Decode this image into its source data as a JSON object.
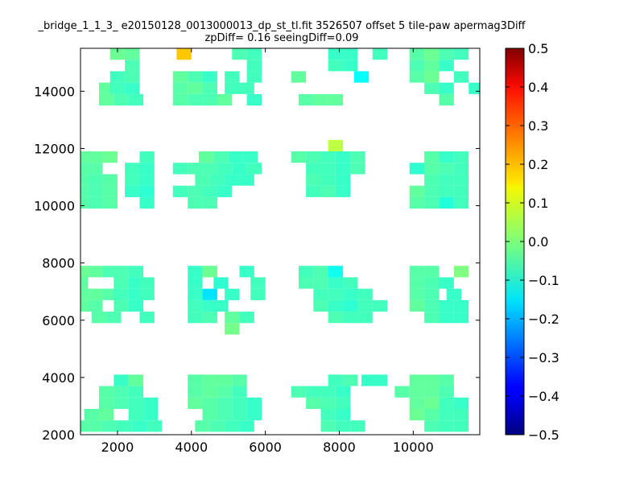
{
  "chart_data": {
    "type": "heatmap",
    "title": "_bridge_1_1_3_ e20150128_0013000013_dp_st_tl.fit 3526507 offset 5 tile-paw apermag3Diff",
    "subtitle": "zpDiff= 0.16 seeingDiff=0.09",
    "xlabel": "",
    "ylabel": "",
    "xlim": [
      1000,
      11800
    ],
    "ylim": [
      2000,
      15500
    ],
    "x_ticks": [
      2000,
      4000,
      6000,
      8000,
      10000
    ],
    "x_tick_labels": [
      "2000",
      "4000",
      "6000",
      "8000",
      "10000"
    ],
    "y_ticks": [
      2000,
      4000,
      6000,
      8000,
      10000,
      12000,
      14000
    ],
    "y_tick_labels": [
      "2000",
      "4000",
      "6000",
      "8000",
      "10000",
      "12000",
      "14000"
    ],
    "cell_width": 400,
    "cell_height": 400,
    "colormap": "jet",
    "colorbar": {
      "min": -0.5,
      "max": 0.5,
      "ticks": [
        0.5,
        0.4,
        0.3,
        0.2,
        0.1,
        0.0,
        -0.1,
        -0.2,
        -0.3,
        -0.4,
        -0.5
      ],
      "tick_labels": [
        "0.5",
        "0.4",
        "0.3",
        "0.2",
        "0.1",
        "0.0",
        "−0.1",
        "−0.2",
        "−0.3",
        "−0.4",
        "−0.5"
      ]
    },
    "cells": [
      [
        2000,
        15300,
        -0.02
      ],
      [
        2400,
        15300,
        -0.03
      ],
      [
        3800,
        15300,
        0.18
      ],
      [
        5300,
        15300,
        -0.05
      ],
      [
        5700,
        15300,
        -0.06
      ],
      [
        7900,
        15300,
        -0.07
      ],
      [
        8300,
        15300,
        -0.07
      ],
      [
        9100,
        15300,
        -0.06
      ],
      [
        10100,
        15300,
        -0.04
      ],
      [
        10500,
        15300,
        -0.02
      ],
      [
        10900,
        15300,
        -0.05
      ],
      [
        11300,
        15300,
        -0.06
      ],
      [
        2400,
        14900,
        -0.05
      ],
      [
        5700,
        14900,
        -0.06
      ],
      [
        7900,
        14900,
        -0.06
      ],
      [
        8300,
        14900,
        -0.07
      ],
      [
        10100,
        14900,
        -0.05
      ],
      [
        10500,
        14900,
        -0.03
      ],
      [
        10900,
        14900,
        -0.07
      ],
      [
        2000,
        14500,
        -0.06
      ],
      [
        2400,
        14500,
        -0.05
      ],
      [
        3700,
        14500,
        -0.03
      ],
      [
        4100,
        14500,
        -0.05
      ],
      [
        4500,
        14500,
        -0.07
      ],
      [
        5100,
        14500,
        -0.06
      ],
      [
        5700,
        14500,
        -0.06
      ],
      [
        6900,
        14500,
        -0.03
      ],
      [
        8600,
        14500,
        -0.12
      ],
      [
        10100,
        14500,
        -0.04
      ],
      [
        10500,
        14500,
        -0.02
      ],
      [
        11300,
        14500,
        -0.06
      ],
      [
        1700,
        14100,
        -0.03
      ],
      [
        2000,
        14100,
        -0.06
      ],
      [
        2400,
        14100,
        -0.07
      ],
      [
        3700,
        14100,
        -0.04
      ],
      [
        4100,
        14100,
        -0.03
      ],
      [
        4500,
        14100,
        -0.05
      ],
      [
        5100,
        14100,
        -0.06
      ],
      [
        5500,
        14100,
        -0.06
      ],
      [
        10500,
        14100,
        -0.05
      ],
      [
        10900,
        14100,
        -0.07
      ],
      [
        11700,
        14100,
        -0.07
      ],
      [
        1700,
        13700,
        -0.03
      ],
      [
        2100,
        13700,
        -0.05
      ],
      [
        2500,
        13700,
        -0.06
      ],
      [
        3700,
        13700,
        -0.04
      ],
      [
        4100,
        13700,
        -0.05
      ],
      [
        4500,
        13700,
        -0.05
      ],
      [
        4900,
        13700,
        -0.03
      ],
      [
        5700,
        13700,
        -0.07
      ],
      [
        7100,
        13700,
        -0.04
      ],
      [
        7500,
        13700,
        -0.03
      ],
      [
        7900,
        13700,
        -0.03
      ],
      [
        10900,
        13700,
        -0.04
      ],
      [
        7900,
        12100,
        0.06
      ],
      [
        1000,
        11700,
        -0.03
      ],
      [
        1400,
        11700,
        -0.03
      ],
      [
        1800,
        11700,
        -0.02
      ],
      [
        2800,
        11700,
        -0.06
      ],
      [
        4400,
        11700,
        -0.03
      ],
      [
        4800,
        11700,
        -0.05
      ],
      [
        5200,
        11700,
        -0.07
      ],
      [
        5600,
        11700,
        -0.07
      ],
      [
        6900,
        11700,
        -0.04
      ],
      [
        7300,
        11700,
        -0.05
      ],
      [
        7700,
        11700,
        -0.06
      ],
      [
        8100,
        11700,
        -0.07
      ],
      [
        8500,
        11700,
        -0.05
      ],
      [
        10500,
        11700,
        -0.04
      ],
      [
        10900,
        11700,
        -0.07
      ],
      [
        11300,
        11700,
        -0.06
      ],
      [
        1000,
        11300,
        -0.04
      ],
      [
        1400,
        11300,
        -0.04
      ],
      [
        2400,
        11300,
        -0.06
      ],
      [
        2800,
        11300,
        -0.07
      ],
      [
        3700,
        11300,
        -0.06
      ],
      [
        4100,
        11300,
        -0.05
      ],
      [
        4500,
        11300,
        -0.05
      ],
      [
        4900,
        11300,
        -0.06
      ],
      [
        5300,
        11300,
        -0.07
      ],
      [
        5700,
        11300,
        -0.06
      ],
      [
        7300,
        11300,
        -0.06
      ],
      [
        7700,
        11300,
        -0.06
      ],
      [
        8100,
        11300,
        -0.07
      ],
      [
        8500,
        11300,
        -0.05
      ],
      [
        10100,
        11300,
        -0.08
      ],
      [
        10500,
        11300,
        -0.04
      ],
      [
        10900,
        11300,
        -0.05
      ],
      [
        11300,
        11300,
        -0.06
      ],
      [
        1000,
        10900,
        -0.04
      ],
      [
        1400,
        10900,
        -0.05
      ],
      [
        1800,
        10900,
        -0.04
      ],
      [
        2400,
        10900,
        -0.06
      ],
      [
        2800,
        10900,
        -0.07
      ],
      [
        4300,
        10900,
        -0.05
      ],
      [
        4700,
        10900,
        -0.06
      ],
      [
        5100,
        10900,
        -0.07
      ],
      [
        5500,
        10900,
        -0.07
      ],
      [
        7300,
        10900,
        -0.05
      ],
      [
        7700,
        10900,
        -0.06
      ],
      [
        8100,
        10900,
        -0.07
      ],
      [
        10500,
        10900,
        -0.05
      ],
      [
        10900,
        10900,
        -0.06
      ],
      [
        11300,
        10900,
        -0.06
      ],
      [
        1000,
        10500,
        -0.04
      ],
      [
        1400,
        10500,
        -0.05
      ],
      [
        1800,
        10500,
        -0.04
      ],
      [
        2400,
        10500,
        -0.07
      ],
      [
        2800,
        10500,
        -0.08
      ],
      [
        3700,
        10500,
        -0.06
      ],
      [
        4100,
        10500,
        -0.05
      ],
      [
        4500,
        10500,
        -0.06
      ],
      [
        4900,
        10500,
        -0.07
      ],
      [
        7300,
        10500,
        -0.06
      ],
      [
        7700,
        10500,
        -0.05
      ],
      [
        8100,
        10500,
        -0.07
      ],
      [
        10100,
        10500,
        -0.03
      ],
      [
        10500,
        10500,
        -0.05
      ],
      [
        10900,
        10500,
        -0.06
      ],
      [
        11300,
        10500,
        -0.06
      ],
      [
        1000,
        10100,
        -0.04
      ],
      [
        1400,
        10100,
        -0.05
      ],
      [
        1800,
        10100,
        -0.04
      ],
      [
        2800,
        10100,
        -0.07
      ],
      [
        4100,
        10100,
        -0.05
      ],
      [
        4500,
        10100,
        -0.05
      ],
      [
        10100,
        10100,
        -0.04
      ],
      [
        10500,
        10100,
        -0.05
      ],
      [
        10900,
        10100,
        -0.09
      ],
      [
        11300,
        10100,
        -0.06
      ],
      [
        1000,
        7700,
        -0.02
      ],
      [
        1400,
        7700,
        -0.03
      ],
      [
        1800,
        7700,
        -0.05
      ],
      [
        2100,
        7700,
        -0.05
      ],
      [
        2500,
        7700,
        -0.06
      ],
      [
        4100,
        7700,
        -0.07
      ],
      [
        4500,
        7700,
        -0.02
      ],
      [
        5500,
        7700,
        -0.07
      ],
      [
        7100,
        7700,
        -0.06
      ],
      [
        7500,
        7700,
        -0.05
      ],
      [
        7900,
        7700,
        -0.11
      ],
      [
        10100,
        7700,
        -0.04
      ],
      [
        10500,
        7700,
        -0.04
      ],
      [
        11300,
        7700,
        0.0
      ],
      [
        1000,
        7300,
        -0.03
      ],
      [
        2100,
        7300,
        -0.05
      ],
      [
        2500,
        7300,
        -0.07
      ],
      [
        2800,
        7300,
        -0.06
      ],
      [
        4100,
        7300,
        -0.07
      ],
      [
        4800,
        7300,
        -0.08
      ],
      [
        5800,
        7300,
        -0.06
      ],
      [
        7100,
        7300,
        -0.05
      ],
      [
        7500,
        7300,
        -0.05
      ],
      [
        7900,
        7300,
        -0.07
      ],
      [
        8300,
        7300,
        -0.06
      ],
      [
        10100,
        7300,
        -0.04
      ],
      [
        10500,
        7300,
        -0.05
      ],
      [
        10900,
        7300,
        -0.07
      ],
      [
        1000,
        6900,
        -0.03
      ],
      [
        1400,
        6900,
        -0.03
      ],
      [
        1800,
        6900,
        -0.04
      ],
      [
        2100,
        6900,
        -0.06
      ],
      [
        2500,
        6900,
        -0.07
      ],
      [
        2800,
        6900,
        -0.06
      ],
      [
        4100,
        6900,
        -0.07
      ],
      [
        4500,
        6900,
        -0.15
      ],
      [
        5100,
        6900,
        -0.07
      ],
      [
        5800,
        6900,
        -0.06
      ],
      [
        7500,
        6900,
        -0.06
      ],
      [
        7900,
        6900,
        -0.06
      ],
      [
        8300,
        6900,
        -0.07
      ],
      [
        8700,
        6900,
        -0.06
      ],
      [
        10100,
        6900,
        -0.04
      ],
      [
        10500,
        6900,
        -0.05
      ],
      [
        11100,
        6900,
        -0.07
      ],
      [
        1000,
        6500,
        -0.03
      ],
      [
        1400,
        6500,
        -0.04
      ],
      [
        2100,
        6500,
        -0.05
      ],
      [
        2500,
        6500,
        -0.07
      ],
      [
        4100,
        6500,
        -0.06
      ],
      [
        4500,
        6500,
        -0.07
      ],
      [
        4800,
        6500,
        -0.07
      ],
      [
        7500,
        6500,
        -0.05
      ],
      [
        7900,
        6500,
        -0.07
      ],
      [
        8300,
        6500,
        -0.08
      ],
      [
        8700,
        6500,
        -0.06
      ],
      [
        9100,
        6500,
        -0.06
      ],
      [
        10100,
        6500,
        -0.03
      ],
      [
        10500,
        6500,
        -0.05
      ],
      [
        10900,
        6500,
        -0.07
      ],
      [
        11300,
        6500,
        -0.07
      ],
      [
        1500,
        6100,
        -0.04
      ],
      [
        1900,
        6100,
        -0.05
      ],
      [
        2800,
        6100,
        -0.06
      ],
      [
        4100,
        6100,
        -0.06
      ],
      [
        4500,
        6100,
        -0.05
      ],
      [
        5100,
        6100,
        -0.03
      ],
      [
        5500,
        6100,
        -0.06
      ],
      [
        7900,
        6100,
        -0.05
      ],
      [
        8300,
        6100,
        -0.06
      ],
      [
        8700,
        6100,
        -0.06
      ],
      [
        10500,
        6100,
        -0.05
      ],
      [
        10900,
        6100,
        -0.07
      ],
      [
        11300,
        6100,
        -0.07
      ],
      [
        5100,
        5700,
        -0.01
      ],
      [
        2100,
        3900,
        -0.07
      ],
      [
        2500,
        3900,
        -0.03
      ],
      [
        4100,
        3900,
        -0.04
      ],
      [
        4500,
        3900,
        -0.03
      ],
      [
        4900,
        3900,
        -0.03
      ],
      [
        5300,
        3900,
        -0.04
      ],
      [
        7900,
        3900,
        -0.06
      ],
      [
        8300,
        3900,
        -0.05
      ],
      [
        8800,
        3900,
        -0.07
      ],
      [
        9100,
        3900,
        -0.07
      ],
      [
        10100,
        3900,
        -0.03
      ],
      [
        10500,
        3900,
        -0.03
      ],
      [
        10900,
        3900,
        -0.04
      ],
      [
        1700,
        3500,
        -0.04
      ],
      [
        2100,
        3500,
        -0.05
      ],
      [
        2500,
        3500,
        -0.06
      ],
      [
        4100,
        3500,
        -0.04
      ],
      [
        4500,
        3500,
        -0.03
      ],
      [
        4900,
        3500,
        -0.04
      ],
      [
        5300,
        3500,
        -0.06
      ],
      [
        6900,
        3500,
        -0.05
      ],
      [
        7300,
        3500,
        -0.06
      ],
      [
        7700,
        3500,
        -0.06
      ],
      [
        8100,
        3500,
        -0.07
      ],
      [
        9700,
        3500,
        -0.04
      ],
      [
        10100,
        3500,
        -0.03
      ],
      [
        10500,
        3500,
        -0.03
      ],
      [
        10900,
        3500,
        -0.05
      ],
      [
        1700,
        3100,
        -0.04
      ],
      [
        2100,
        3100,
        -0.05
      ],
      [
        2500,
        3100,
        -0.06
      ],
      [
        2900,
        3100,
        -0.07
      ],
      [
        4100,
        3100,
        -0.03
      ],
      [
        4500,
        3100,
        -0.04
      ],
      [
        4900,
        3100,
        -0.05
      ],
      [
        5300,
        3100,
        -0.06
      ],
      [
        5700,
        3100,
        -0.07
      ],
      [
        7300,
        3100,
        -0.04
      ],
      [
        7700,
        3100,
        -0.05
      ],
      [
        8100,
        3100,
        -0.06
      ],
      [
        10100,
        3100,
        -0.03
      ],
      [
        10500,
        3100,
        -0.02
      ],
      [
        10900,
        3100,
        -0.06
      ],
      [
        11300,
        3100,
        -0.07
      ],
      [
        1300,
        2700,
        -0.04
      ],
      [
        1700,
        2700,
        -0.03
      ],
      [
        2500,
        2700,
        -0.06
      ],
      [
        2900,
        2700,
        -0.07
      ],
      [
        4500,
        2700,
        -0.04
      ],
      [
        4900,
        2700,
        -0.05
      ],
      [
        5300,
        2700,
        -0.06
      ],
      [
        5700,
        2700,
        -0.07
      ],
      [
        7700,
        2700,
        -0.06
      ],
      [
        8100,
        2700,
        -0.07
      ],
      [
        10100,
        2700,
        -0.02
      ],
      [
        10500,
        2700,
        -0.04
      ],
      [
        10900,
        2700,
        -0.06
      ],
      [
        11300,
        2700,
        -0.06
      ],
      [
        1000,
        2300,
        -0.04
      ],
      [
        1400,
        2300,
        -0.04
      ],
      [
        1800,
        2300,
        -0.05
      ],
      [
        2200,
        2300,
        -0.06
      ],
      [
        2600,
        2300,
        -0.07
      ],
      [
        3000,
        2300,
        -0.06
      ],
      [
        4300,
        2300,
        -0.04
      ],
      [
        4700,
        2300,
        -0.05
      ],
      [
        5100,
        2300,
        -0.06
      ],
      [
        5500,
        2300,
        -0.07
      ],
      [
        7700,
        2300,
        -0.05
      ],
      [
        8100,
        2300,
        -0.06
      ],
      [
        8500,
        2300,
        -0.06
      ],
      [
        10500,
        2300,
        -0.05
      ],
      [
        10900,
        2300,
        -0.06
      ],
      [
        11300,
        2300,
        -0.06
      ]
    ]
  }
}
